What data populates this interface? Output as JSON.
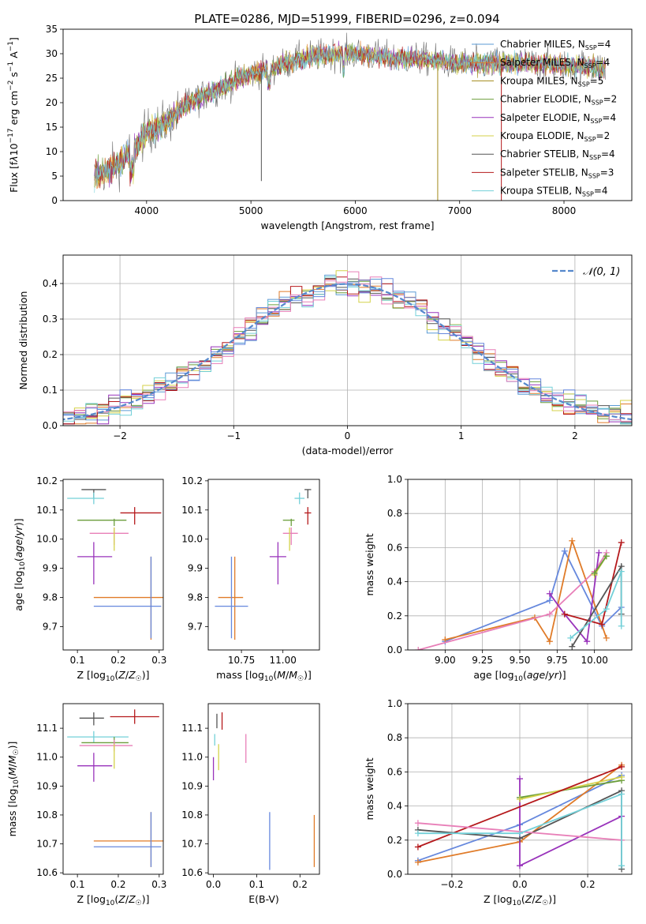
{
  "title": "PLATE=0286, MJD=51999, FIBERID=0296, z=0.094",
  "colors": {
    "Chabrier MILES": "#5b9bd5",
    "Salpeter MILES": "#e07b28",
    "Kroupa MILES": "#a38a1a",
    "Chabrier ELODIE": "#6b9e3c",
    "Salpeter ELODIE": "#9933bb",
    "Kroupa ELODIE": "#d4d24a",
    "Chabrier STELIB": "#555555",
    "Salpeter STELIB": "#b5191c",
    "Kroupa STELIB": "#73d0d8",
    "pink": "#e87fb8",
    "blue": "#6688dd"
  },
  "chart_data": [
    {
      "type": "line",
      "xlabel": "wavelength [Angstrom, rest frame]",
      "ylabel_html": "Flux [f<tspan font-style='italic'>λ</tspan>10<tspan dy='-6' font-size='9'>−17</tspan><tspan dy='6'> erg cm</tspan><tspan dy='-6' font-size='9'>−2</tspan><tspan dy='6'> s</tspan><tspan dy='-6' font-size='9'>−1</tspan><tspan dy='6'> A</tspan><tspan dy='-6' font-size='9'>−1</tspan><tspan dy='6'>]</tspan>",
      "xlim": [
        3200,
        8650
      ],
      "ylim": [
        0,
        35
      ],
      "xticks": [
        4000,
        5000,
        6000,
        7000,
        8000
      ],
      "yticks": [
        0,
        5,
        10,
        15,
        20,
        25,
        30,
        35
      ],
      "legend_placement": "right",
      "legend": [
        {
          "name": "Chabrier MILES",
          "nssp": "4"
        },
        {
          "name": "Salpeter MILES",
          "nssp": "4"
        },
        {
          "name": "Kroupa MILES",
          "nssp": "5"
        },
        {
          "name": "Chabrier ELODIE",
          "nssp": "2"
        },
        {
          "name": "Salpeter ELODIE",
          "nssp": "4"
        },
        {
          "name": "Kroupa ELODIE",
          "nssp": "2"
        },
        {
          "name": "Chabrier STELIB",
          "nssp": "4"
        },
        {
          "name": "Salpeter STELIB",
          "nssp": "3"
        },
        {
          "name": "Kroupa STELIB",
          "nssp": "4"
        }
      ],
      "continuum": {
        "x": [
          3500,
          3700,
          3900,
          4000,
          4200,
          4400,
          4600,
          4800,
          5000,
          5200,
          5400,
          5600,
          5800,
          6000,
          6200,
          6400,
          6600,
          6800,
          7000,
          7200,
          7400,
          7600,
          7800,
          8000,
          8200,
          8400
        ],
        "y": [
          5,
          7,
          11,
          14,
          16,
          20,
          22,
          24,
          26,
          27,
          28.5,
          29.5,
          30,
          30,
          29.5,
          29,
          29,
          28.5,
          28,
          28,
          28,
          28,
          28,
          27.5,
          27.5,
          27
        ]
      },
      "spikes": [
        {
          "x": 5100,
          "y": 4,
          "series": "Chabrier STELIB"
        },
        {
          "x": 6790,
          "y": 0,
          "series": "Kroupa MILES"
        },
        {
          "x": 7400,
          "y": 0,
          "series": "Salpeter STELIB"
        }
      ]
    },
    {
      "type": "step",
      "xlabel": "(data-model)/error",
      "ylabel": "Normed distribution",
      "xlim": [
        -2.5,
        2.5
      ],
      "ylim": [
        0,
        0.48
      ],
      "xticks": [
        -2,
        -1,
        0,
        1,
        2
      ],
      "yticks": [
        0.0,
        0.1,
        0.2,
        0.3,
        0.4
      ],
      "grid": true,
      "legend": "𝒩(0, 1)",
      "legend_placement": "top-right",
      "bin_width": 0.1
    },
    {
      "type": "errorbar",
      "xlabel": "Z [log10(Z/Z☉)]",
      "ylabel": "age  [log10(age/yr)]",
      "xlim": [
        0.065,
        0.31
      ],
      "ylim": [
        9.62,
        10.205
      ],
      "xticks": [
        0.1,
        0.2,
        0.3
      ],
      "yticks": [
        9.7,
        9.8,
        9.9,
        10.0,
        10.1,
        10.2
      ],
      "points": [
        {
          "x": 0.14,
          "y": 10.17,
          "xerr": [
            0.03,
            0.03
          ],
          "yerr": [
            0.03,
            0.0
          ],
          "c": "Chabrier STELIB"
        },
        {
          "x": 0.14,
          "y": 10.14,
          "xerr": [
            0.065,
            0.025
          ],
          "yerr": [
            0.02,
            0.02
          ],
          "c": "Kroupa STELIB"
        },
        {
          "x": 0.24,
          "y": 10.09,
          "xerr": [
            0.035,
            0.065
          ],
          "yerr": [
            0.04,
            0.02
          ],
          "c": "Salpeter STELIB"
        },
        {
          "x": 0.19,
          "y": 10.065,
          "xerr": [
            0.09,
            0.03
          ],
          "yerr": [
            0.02,
            0.005
          ],
          "c": "Chabrier ELODIE"
        },
        {
          "x": 0.19,
          "y": 10.02,
          "xerr": [
            0.06,
            0.035
          ],
          "yerr": [
            0.04,
            0.02
          ],
          "c": "pink"
        },
        {
          "x": 0.19,
          "y": 10.0,
          "xerr": [
            0.0,
            0.0
          ],
          "yerr": [
            0.04,
            0.04
          ],
          "c": "Kroupa ELODIE"
        },
        {
          "x": 0.14,
          "y": 9.94,
          "xerr": [
            0.04,
            0.045
          ],
          "yerr": [
            0.095,
            0.05
          ],
          "c": "Salpeter ELODIE"
        },
        {
          "x": 0.28,
          "y": 9.8,
          "xerr": [
            0.14,
            0.03
          ],
          "yerr": [
            0.145,
            0.14
          ],
          "c": "Salpeter MILES"
        },
        {
          "x": 0.28,
          "y": 9.77,
          "xerr": [
            0.14,
            0.025
          ],
          "yerr": [
            0.11,
            0.17
          ],
          "c": "blue"
        }
      ]
    },
    {
      "type": "errorbar",
      "xlabel": "mass [log10(M/M☉)]",
      "ylabel": "",
      "xlim": [
        10.55,
        11.22
      ],
      "ylim": [
        9.62,
        10.205
      ],
      "xticks": [
        10.75,
        11.0
      ],
      "yticks": [
        9.7,
        9.8,
        9.9,
        10.0,
        10.1,
        10.2
      ],
      "points": [
        {
          "x": 11.15,
          "y": 10.17,
          "xerr": [
            0.02,
            0.02
          ],
          "yerr": [
            0.03,
            0.0
          ],
          "c": "Chabrier STELIB"
        },
        {
          "x": 11.1,
          "y": 10.14,
          "xerr": [
            0.03,
            0.03
          ],
          "yerr": [
            0.02,
            0.02
          ],
          "c": "Kroupa STELIB"
        },
        {
          "x": 11.15,
          "y": 10.09,
          "xerr": [
            0.02,
            0.02
          ],
          "yerr": [
            0.04,
            0.02
          ],
          "c": "Salpeter STELIB"
        },
        {
          "x": 11.05,
          "y": 10.065,
          "xerr": [
            0.05,
            0.02
          ],
          "yerr": [
            0.02,
            0.005
          ],
          "c": "Chabrier ELODIE"
        },
        {
          "x": 11.05,
          "y": 10.02,
          "xerr": [
            0.05,
            0.04
          ],
          "yerr": [
            0.04,
            0.02
          ],
          "c": "pink"
        },
        {
          "x": 11.04,
          "y": 10.0,
          "xerr": [
            0.0,
            0.0
          ],
          "yerr": [
            0.04,
            0.04
          ],
          "c": "Kroupa ELODIE"
        },
        {
          "x": 10.97,
          "y": 9.94,
          "xerr": [
            0.05,
            0.05
          ],
          "yerr": [
            0.095,
            0.05
          ],
          "c": "Salpeter ELODIE"
        },
        {
          "x": 10.71,
          "y": 9.8,
          "xerr": [
            0.1,
            0.05
          ],
          "yerr": [
            0.145,
            0.14
          ],
          "c": "Salpeter MILES"
        },
        {
          "x": 10.69,
          "y": 9.77,
          "xerr": [
            0.1,
            0.1
          ],
          "yerr": [
            0.11,
            0.17
          ],
          "c": "blue"
        }
      ]
    },
    {
      "type": "line",
      "xlabel": "age  [log10(age/yr)]",
      "ylabel": "mass weight",
      "xlim": [
        8.75,
        10.25
      ],
      "ylim": [
        0,
        1.0
      ],
      "xticks": [
        9.0,
        9.25,
        9.5,
        9.75,
        10.0
      ],
      "yticks": [
        0.0,
        0.2,
        0.4,
        0.6,
        0.8,
        1.0
      ],
      "grid": true,
      "series": [
        {
          "c": "blue",
          "x": [
            9.0,
            9.7,
            9.8,
            10.05,
            10.18
          ],
          "y": [
            0.05,
            0.29,
            0.58,
            0.14,
            0.25
          ]
        },
        {
          "c": "Salpeter MILES",
          "x": [
            9.0,
            9.6,
            9.7,
            9.85,
            10.08
          ],
          "y": [
            0.06,
            0.19,
            0.05,
            0.64,
            0.07
          ]
        },
        {
          "c": "pink",
          "x": [
            8.82,
            9.7,
            10.0,
            10.08
          ],
          "y": [
            0.0,
            0.21,
            0.46,
            0.57
          ]
        },
        {
          "c": "Salpeter ELODIE",
          "x": [
            9.7,
            9.8,
            9.95,
            10.03
          ],
          "y": [
            0.33,
            0.21,
            0.05,
            0.57
          ]
        },
        {
          "c": "Salpeter STELIB",
          "x": [
            9.8,
            10.05,
            10.18
          ],
          "y": [
            0.21,
            0.15,
            0.63
          ]
        },
        {
          "c": "Chabrier STELIB",
          "x": [
            9.85,
            10.18,
            10.18
          ],
          "y": [
            0.02,
            0.49,
            0.21
          ]
        },
        {
          "c": "Kroupa ELODIE",
          "x": [
            10.0,
            10.08
          ],
          "y": [
            0.44,
            0.55
          ]
        },
        {
          "c": "Chabrier ELODIE",
          "x": [
            10.0,
            10.08
          ],
          "y": [
            0.45,
            0.55
          ]
        },
        {
          "c": "Kroupa STELIB",
          "x": [
            9.84,
            10.08,
            10.18,
            10.18
          ],
          "y": [
            0.07,
            0.24,
            0.46,
            0.14
          ]
        }
      ]
    },
    {
      "type": "errorbar",
      "xlabel": "Z [log10(Z/Z☉)]",
      "ylabel": "mass [log10(M/M☉)]",
      "xlim": [
        0.065,
        0.31
      ],
      "ylim": [
        10.595,
        11.185
      ],
      "xticks": [
        0.1,
        0.2,
        0.3
      ],
      "yticks": [
        10.6,
        10.7,
        10.8,
        10.9,
        11.0,
        11.1
      ],
      "points": [
        {
          "x": 0.14,
          "y": 11.135,
          "xerr": [
            0.035,
            0.025
          ],
          "yerr": [
            0.025,
            0.02
          ],
          "c": "Chabrier STELIB"
        },
        {
          "x": 0.24,
          "y": 11.14,
          "xerr": [
            0.06,
            0.06
          ],
          "yerr": [
            0.025,
            0.025
          ],
          "c": "Salpeter STELIB"
        },
        {
          "x": 0.14,
          "y": 11.07,
          "xerr": [
            0.065,
            0.085
          ],
          "yerr": [
            0.02,
            0.02
          ],
          "c": "Kroupa STELIB"
        },
        {
          "x": 0.19,
          "y": 11.05,
          "xerr": [
            0.08,
            0.035
          ],
          "yerr": [
            0.02,
            0.02
          ],
          "c": "Chabrier ELODIE"
        },
        {
          "x": 0.19,
          "y": 11.04,
          "xerr": [
            0.085,
            0.045
          ],
          "yerr": [
            0.02,
            0.02
          ],
          "c": "pink"
        },
        {
          "x": 0.19,
          "y": 11.0,
          "xerr": [
            0.0,
            0.0
          ],
          "yerr": [
            0.04,
            0.045
          ],
          "c": "Kroupa ELODIE"
        },
        {
          "x": 0.14,
          "y": 10.97,
          "xerr": [
            0.04,
            0.045
          ],
          "yerr": [
            0.055,
            0.045
          ],
          "c": "Salpeter ELODIE"
        },
        {
          "x": 0.28,
          "y": 10.71,
          "xerr": [
            0.14,
            0.03
          ],
          "yerr": [
            0.09,
            0.1
          ],
          "c": "Salpeter MILES"
        },
        {
          "x": 0.28,
          "y": 10.69,
          "xerr": [
            0.14,
            0.025
          ],
          "yerr": [
            0.07,
            0.12
          ],
          "c": "blue"
        }
      ]
    },
    {
      "type": "errorbar",
      "xlabel": "E(B-V)",
      "ylabel": "",
      "xlim": [
        -0.012,
        0.245
      ],
      "ylim": [
        10.595,
        11.185
      ],
      "xticks": [
        0.0,
        0.1,
        0.2
      ],
      "yticks": [
        10.6,
        10.7,
        10.8,
        10.9,
        11.0,
        11.1
      ],
      "points": [
        {
          "x": 0.008,
          "y": 11.125,
          "xerr": [
            0.0,
            0.0
          ],
          "yerr": [
            0.025,
            0.025
          ],
          "c": "Chabrier STELIB"
        },
        {
          "x": 0.02,
          "y": 11.125,
          "xerr": [
            0.0,
            0.0
          ],
          "yerr": [
            0.03,
            0.03
          ],
          "c": "Salpeter STELIB"
        },
        {
          "x": 0.003,
          "y": 11.06,
          "xerr": [
            0.0,
            0.0
          ],
          "yerr": [
            0.02,
            0.02
          ],
          "c": "Kroupa STELIB"
        },
        {
          "x": 0.012,
          "y": 11.0,
          "xerr": [
            0.0,
            0.0
          ],
          "yerr": [
            0.045,
            0.045
          ],
          "c": "Kroupa ELODIE"
        },
        {
          "x": 0.0,
          "y": 10.96,
          "xerr": [
            0.0,
            0.0
          ],
          "yerr": [
            0.04,
            0.04
          ],
          "c": "Salpeter ELODIE"
        },
        {
          "x": 0.075,
          "y": 11.03,
          "xerr": [
            0.0,
            0.0
          ],
          "yerr": [
            0.05,
            0.05
          ],
          "c": "pink"
        },
        {
          "x": 0.13,
          "y": 10.71,
          "xerr": [
            0.0,
            0.0
          ],
          "yerr": [
            0.1,
            0.1
          ],
          "c": "blue"
        },
        {
          "x": 0.233,
          "y": 10.71,
          "xerr": [
            0.0,
            0.0
          ],
          "yerr": [
            0.09,
            0.09
          ],
          "c": "Salpeter MILES"
        }
      ]
    },
    {
      "type": "line",
      "xlabel": "Z [log10(Z/Z☉)]",
      "ylabel": "mass weight",
      "xlim": [
        -0.33,
        0.33
      ],
      "ylim": [
        0,
        1.0
      ],
      "xticks": [
        -0.2,
        0.0,
        0.2
      ],
      "yticks": [
        0.0,
        0.2,
        0.4,
        0.6,
        0.8,
        1.0
      ],
      "grid": true,
      "series": [
        {
          "c": "blue",
          "x": [
            -0.3,
            0.0,
            0.3
          ],
          "y": [
            0.08,
            0.29,
            0.58
          ]
        },
        {
          "c": "Salpeter MILES",
          "x": [
            -0.3,
            0.0,
            0.3
          ],
          "y": [
            0.07,
            0.19,
            0.64
          ]
        },
        {
          "c": "Salpeter ELODIE",
          "x": [
            0.0,
            0.0,
            0.3
          ],
          "y": [
            0.56,
            0.05,
            0.34
          ]
        },
        {
          "c": "Chabrier ELODIE",
          "x": [
            0.0,
            0.3
          ],
          "y": [
            0.45,
            0.55
          ]
        },
        {
          "c": "Kroupa ELODIE",
          "x": [
            0.0,
            0.3
          ],
          "y": [
            0.44,
            0.57
          ]
        },
        {
          "c": "Salpeter STELIB",
          "x": [
            -0.3,
            0.3
          ],
          "y": [
            0.16,
            0.63
          ]
        },
        {
          "c": "Chabrier STELIB",
          "x": [
            -0.3,
            0.0,
            0.3,
            0.3
          ],
          "y": [
            0.26,
            0.21,
            0.49,
            0.03
          ]
        },
        {
          "c": "pink",
          "x": [
            -0.3,
            0.3
          ],
          "y": [
            0.3,
            0.2
          ]
        },
        {
          "c": "Kroupa STELIB",
          "x": [
            -0.3,
            0.0,
            0.3,
            0.3
          ],
          "y": [
            0.24,
            0.24,
            0.47,
            0.05
          ]
        }
      ]
    }
  ]
}
